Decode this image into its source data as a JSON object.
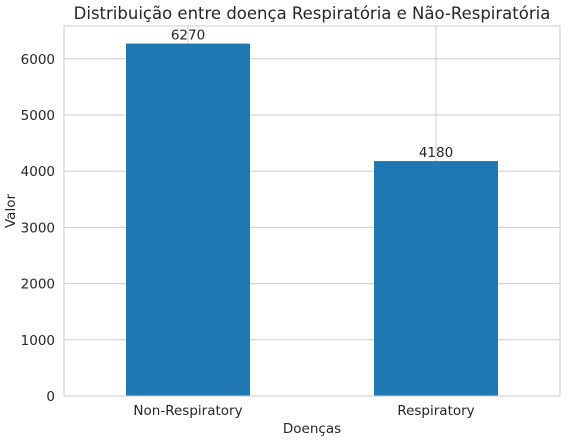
{
  "chart_data": {
    "type": "bar",
    "title": "Distribuição entre doença Respiratória e Não-Respiratória",
    "xlabel": "Doenças",
    "ylabel": "Valor",
    "categories": [
      "Non-Respiratory",
      "Respiratory"
    ],
    "values": [
      6270,
      4180
    ],
    "data_labels": [
      "6270",
      "4180"
    ],
    "ylim": [
      0,
      6583
    ],
    "yticks": [
      0,
      1000,
      2000,
      3000,
      4000,
      5000,
      6000
    ],
    "ytick_labels": [
      "0",
      "1000",
      "2000",
      "3000",
      "4000",
      "5000",
      "6000"
    ],
    "grid": true,
    "bar_color": "#1f77b4",
    "grid_color": "#cccccc",
    "legend": "none"
  }
}
